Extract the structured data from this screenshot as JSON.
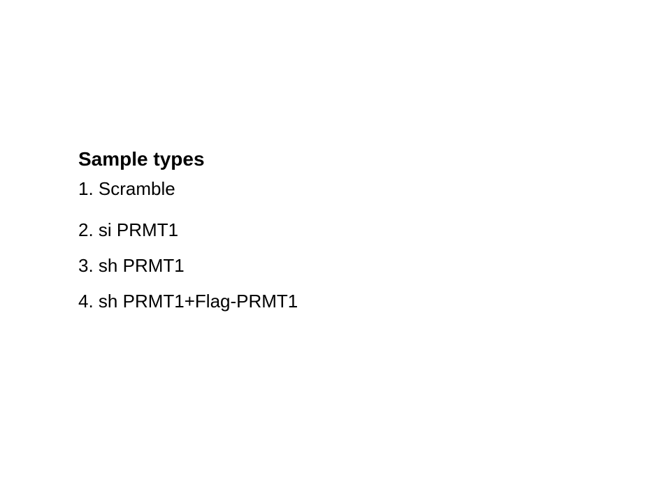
{
  "slide": {
    "heading": "Sample types",
    "samples": [
      {
        "number": "1.",
        "label": "Scramble"
      },
      {
        "number": "2.",
        "label": "si PRMT1"
      },
      {
        "number": "3.",
        "label": "sh PRMT1"
      },
      {
        "number": "4.",
        "label": "sh PRMT1+Flag-PRMT1"
      }
    ]
  }
}
